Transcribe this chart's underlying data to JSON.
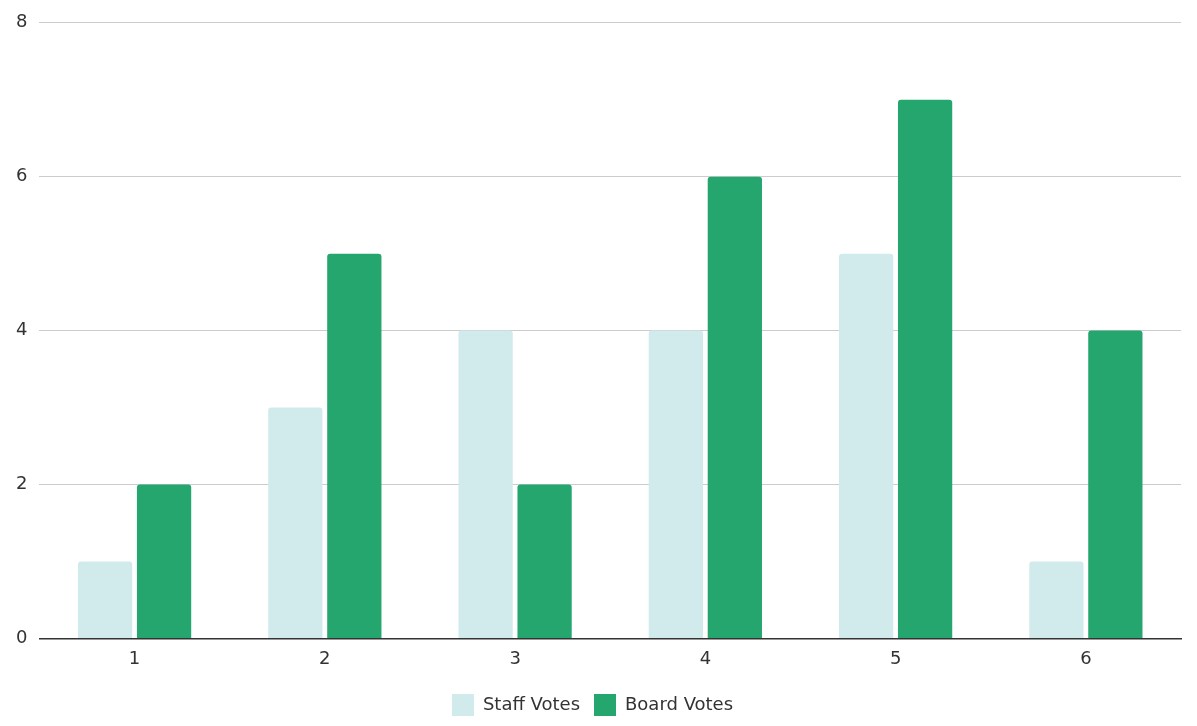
{
  "chart_data": {
    "type": "bar",
    "categories": [
      "1",
      "2",
      "3",
      "4",
      "5",
      "6"
    ],
    "series": [
      {
        "name": "Staff Votes",
        "color": "#d1eaec",
        "values": [
          1,
          3,
          4,
          4,
          5,
          1
        ]
      },
      {
        "name": "Board Votes",
        "color": "#26a66f",
        "values": [
          2,
          5,
          2,
          6,
          7,
          4
        ]
      }
    ],
    "ylim": [
      0,
      8
    ],
    "yticks": [
      0,
      2,
      4,
      6,
      8
    ],
    "grid": "y",
    "legend": "bottom"
  }
}
